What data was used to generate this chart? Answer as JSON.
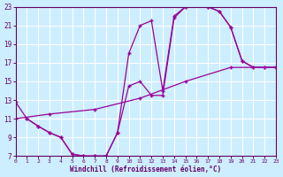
{
  "background_color": "#cceeff",
  "grid_color": "#ffffff",
  "line_color": "#990099",
  "marker_color": "#990099",
  "xlabel": "Windchill (Refroidissement éolien,°C)",
  "xlabel_color": "#660066",
  "tick_color": "#660066",
  "xlim": [
    0,
    23
  ],
  "ylim": [
    7,
    23
  ],
  "xticks": [
    0,
    1,
    2,
    3,
    4,
    5,
    6,
    7,
    8,
    9,
    10,
    11,
    12,
    13,
    14,
    15,
    16,
    17,
    18,
    19,
    20,
    21,
    22,
    23
  ],
  "yticks": [
    7,
    9,
    11,
    13,
    15,
    17,
    19,
    21,
    23
  ],
  "curve1_x": [
    0,
    1,
    2,
    3,
    4,
    5,
    6,
    7,
    8,
    9,
    10,
    11,
    12,
    13,
    14,
    15,
    16,
    17,
    18,
    19,
    20,
    21,
    22,
    23
  ],
  "curve1_y": [
    12.8,
    11.0,
    10.2,
    9.5,
    9.0,
    7.2,
    7.0,
    7.0,
    7.0,
    9.5,
    18.0,
    21.0,
    21.5,
    14.0,
    22.0,
    23.0,
    23.2,
    23.0,
    22.5,
    20.8,
    17.2,
    16.5,
    16.5,
    16.5
  ],
  "curve2_x": [
    1,
    2,
    3,
    4,
    5,
    6,
    7,
    8,
    9,
    10,
    11,
    12,
    13,
    14,
    15,
    16,
    17,
    18,
    19,
    20,
    21,
    22,
    23
  ],
  "curve2_y": [
    11.0,
    10.2,
    9.5,
    9.0,
    7.2,
    7.0,
    7.0,
    7.0,
    9.5,
    14.5,
    15.0,
    13.5,
    13.5,
    21.8,
    23.0,
    23.2,
    23.0,
    22.5,
    20.8,
    17.2,
    16.5,
    16.5,
    16.5
  ],
  "curve3_x": [
    0,
    3,
    7,
    11,
    15,
    19,
    23
  ],
  "curve3_y": [
    11.0,
    11.5,
    12.0,
    13.2,
    15.0,
    16.5,
    16.5
  ]
}
